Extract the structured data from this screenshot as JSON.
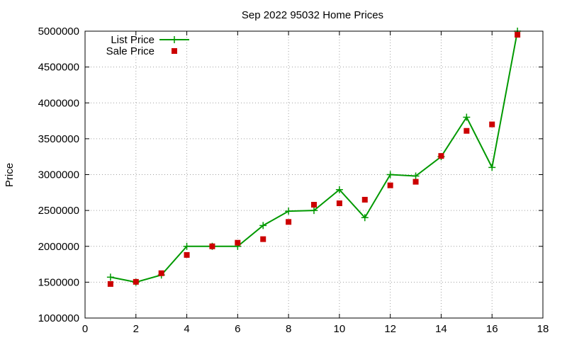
{
  "chart_data": {
    "type": "line",
    "title": "Sep 2022 95032 Home Prices",
    "xlabel": "",
    "ylabel": "Price",
    "xlim": [
      0,
      18
    ],
    "ylim": [
      1000000,
      5000000
    ],
    "xticks": [
      0,
      2,
      4,
      6,
      8,
      10,
      12,
      14,
      16,
      18
    ],
    "yticks": [
      1000000,
      1500000,
      2000000,
      2500000,
      3000000,
      3500000,
      4000000,
      4500000,
      5000000
    ],
    "grid": true,
    "legend_position": "top-left",
    "series": [
      {
        "name": "List Price",
        "style": "line-plus",
        "color": "#009900",
        "x": [
          1,
          2,
          3,
          4,
          5,
          6,
          7,
          8,
          9,
          10,
          11,
          12,
          13,
          14,
          15,
          16,
          17
        ],
        "y": [
          1570000,
          1500000,
          1600000,
          2000000,
          2000000,
          2000000,
          2290000,
          2490000,
          2500000,
          2790000,
          2400000,
          3000000,
          2980000,
          3250000,
          3800000,
          3100000,
          5000000
        ]
      },
      {
        "name": "Sale Price",
        "style": "square",
        "color": "#cc0000",
        "x": [
          1,
          2,
          3,
          4,
          5,
          6,
          7,
          8,
          9,
          10,
          11,
          12,
          13,
          14,
          15,
          16,
          17
        ],
        "y": [
          1475000,
          1505000,
          1625000,
          1880000,
          2000000,
          2050000,
          2100000,
          2340000,
          2580000,
          2600000,
          2650000,
          2850000,
          2900000,
          3260000,
          3610000,
          3700000,
          4950000
        ]
      }
    ]
  }
}
